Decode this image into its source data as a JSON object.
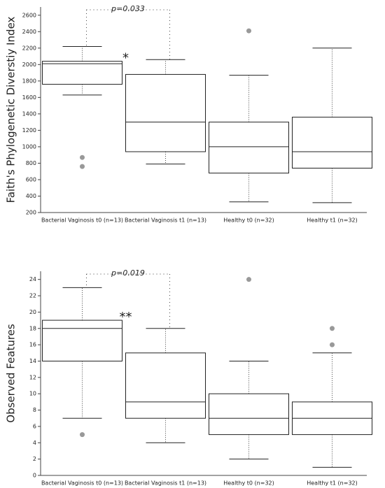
{
  "chart_data": [
    {
      "type": "box",
      "y_label": "Faith's Phylogenetic Diverstiy Index",
      "categories": [
        "Bacterial Vaginosis t0 (n=13)",
        "Bacterial Vaginosis t1 (n=13)",
        "Healthy t0 (n=32)",
        "Healthy t1 (n=32)"
      ],
      "boxes": [
        {
          "whisker_low": 1630,
          "q1": 1760,
          "median": 2010,
          "q3": 2040,
          "whisker_high": 2220,
          "outliers": [
            870,
            760
          ]
        },
        {
          "whisker_low": 790,
          "q1": 940,
          "median": 1300,
          "q3": 1880,
          "whisker_high": 2060,
          "outliers": []
        },
        {
          "whisker_low": 330,
          "q1": 680,
          "median": 1000,
          "q3": 1300,
          "whisker_high": 1870,
          "outliers": [
            2410
          ]
        },
        {
          "whisker_low": 320,
          "q1": 740,
          "median": 940,
          "q3": 1360,
          "whisker_high": 2200,
          "outliers": []
        }
      ],
      "ylim": [
        200,
        2700
      ],
      "yticks": [
        200,
        400,
        600,
        800,
        1000,
        1200,
        1400,
        1600,
        1800,
        2000,
        2200,
        2400,
        2600
      ],
      "annotation": "p=0.033",
      "significance": "*"
    },
    {
      "type": "box",
      "y_label": "Observed Features",
      "categories": [
        "Bacterial Vaginosis t0 (n=13)",
        "Bacterial Vaginosis t1 (n=13)",
        "Healthy t0 (n=32)",
        "Healthy t1 (n=32)"
      ],
      "boxes": [
        {
          "whisker_low": 7,
          "q1": 14,
          "median": 18,
          "q3": 19,
          "whisker_high": 23,
          "outliers": [
            5
          ]
        },
        {
          "whisker_low": 4,
          "q1": 7,
          "median": 9,
          "q3": 15,
          "whisker_high": 18,
          "outliers": []
        },
        {
          "whisker_low": 2,
          "q1": 5,
          "median": 7,
          "q3": 10,
          "whisker_high": 14,
          "outliers": [
            24
          ]
        },
        {
          "whisker_low": 1,
          "q1": 5,
          "median": 7,
          "q3": 9,
          "whisker_high": 15,
          "outliers": [
            16,
            18
          ]
        }
      ],
      "ylim": [
        0,
        25
      ],
      "yticks": [
        0,
        2,
        4,
        6,
        8,
        10,
        12,
        14,
        16,
        18,
        20,
        22,
        24
      ],
      "annotation": "p=0.019",
      "significance": "**"
    }
  ]
}
